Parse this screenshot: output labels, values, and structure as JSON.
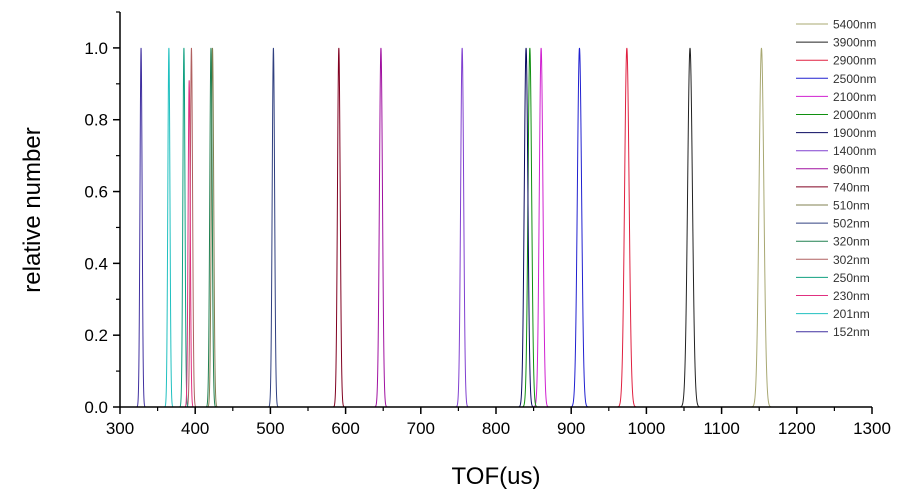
{
  "chart_data": {
    "type": "line",
    "title": "",
    "xlabel": "TOF(us)",
    "ylabel": "relative number",
    "xlim": [
      300,
      1300
    ],
    "ylim": [
      0,
      1.1
    ],
    "x_ticks": [
      "300",
      "400",
      "500",
      "600",
      "700",
      "800",
      "900",
      "1000",
      "1100",
      "1200",
      "1300"
    ],
    "y_ticks": [
      "0.0",
      "0.2",
      "0.4",
      "0.6",
      "0.8",
      "1.0"
    ],
    "grid": false,
    "legend_position": "top-right",
    "series": [
      {
        "name": "5400nm",
        "peak_x": 1153,
        "peak_y": 1.0,
        "width": 3.2,
        "color": "#a8a872"
      },
      {
        "name": "3900nm",
        "peak_x": 1058,
        "peak_y": 1.0,
        "width": 3.2,
        "color": "#222222"
      },
      {
        "name": "2900nm",
        "peak_x": 974,
        "peak_y": 1.0,
        "width": 3.0,
        "color": "#e02040"
      },
      {
        "name": "2500nm",
        "peak_x": 911,
        "peak_y": 1.0,
        "width": 2.8,
        "color": "#2020d0"
      },
      {
        "name": "2100nm",
        "peak_x": 860,
        "peak_y": 1.0,
        "width": 2.4,
        "color": "#d020d0"
      },
      {
        "name": "2000nm",
        "peak_x": 845,
        "peak_y": 1.0,
        "width": 2.4,
        "color": "#109010"
      },
      {
        "name": "1900nm",
        "peak_x": 840,
        "peak_y": 1.0,
        "width": 2.4,
        "color": "#0a0a60"
      },
      {
        "name": "1400nm",
        "peak_x": 755,
        "peak_y": 1.0,
        "width": 2.0,
        "color": "#8040d0"
      },
      {
        "name": "960nm",
        "peak_x": 647,
        "peak_y": 1.0,
        "width": 2.0,
        "color": "#a010a0"
      },
      {
        "name": "740nm",
        "peak_x": 591,
        "peak_y": 1.0,
        "width": 1.8,
        "color": "#800020"
      },
      {
        "name": "510nm",
        "peak_x": 423,
        "peak_y": 1.0,
        "width": 1.6,
        "color": "#808050"
      },
      {
        "name": "502nm",
        "peak_x": 504,
        "peak_y": 1.0,
        "width": 1.6,
        "color": "#304080"
      },
      {
        "name": "320nm",
        "peak_x": 421,
        "peak_y": 1.0,
        "width": 1.6,
        "color": "#208050"
      },
      {
        "name": "302nm",
        "peak_x": 395,
        "peak_y": 1.0,
        "width": 1.5,
        "color": "#b06060"
      },
      {
        "name": "250nm",
        "peak_x": 385,
        "peak_y": 1.0,
        "width": 1.4,
        "color": "#10a080"
      },
      {
        "name": "230nm",
        "peak_x": 392,
        "peak_y": 0.91,
        "width": 1.4,
        "color": "#e03080"
      },
      {
        "name": "201nm",
        "peak_x": 365,
        "peak_y": 1.0,
        "width": 1.4,
        "color": "#20c0c0"
      },
      {
        "name": "152nm",
        "peak_x": 328,
        "peak_y": 1.0,
        "width": 1.4,
        "color": "#4030a0"
      }
    ]
  }
}
